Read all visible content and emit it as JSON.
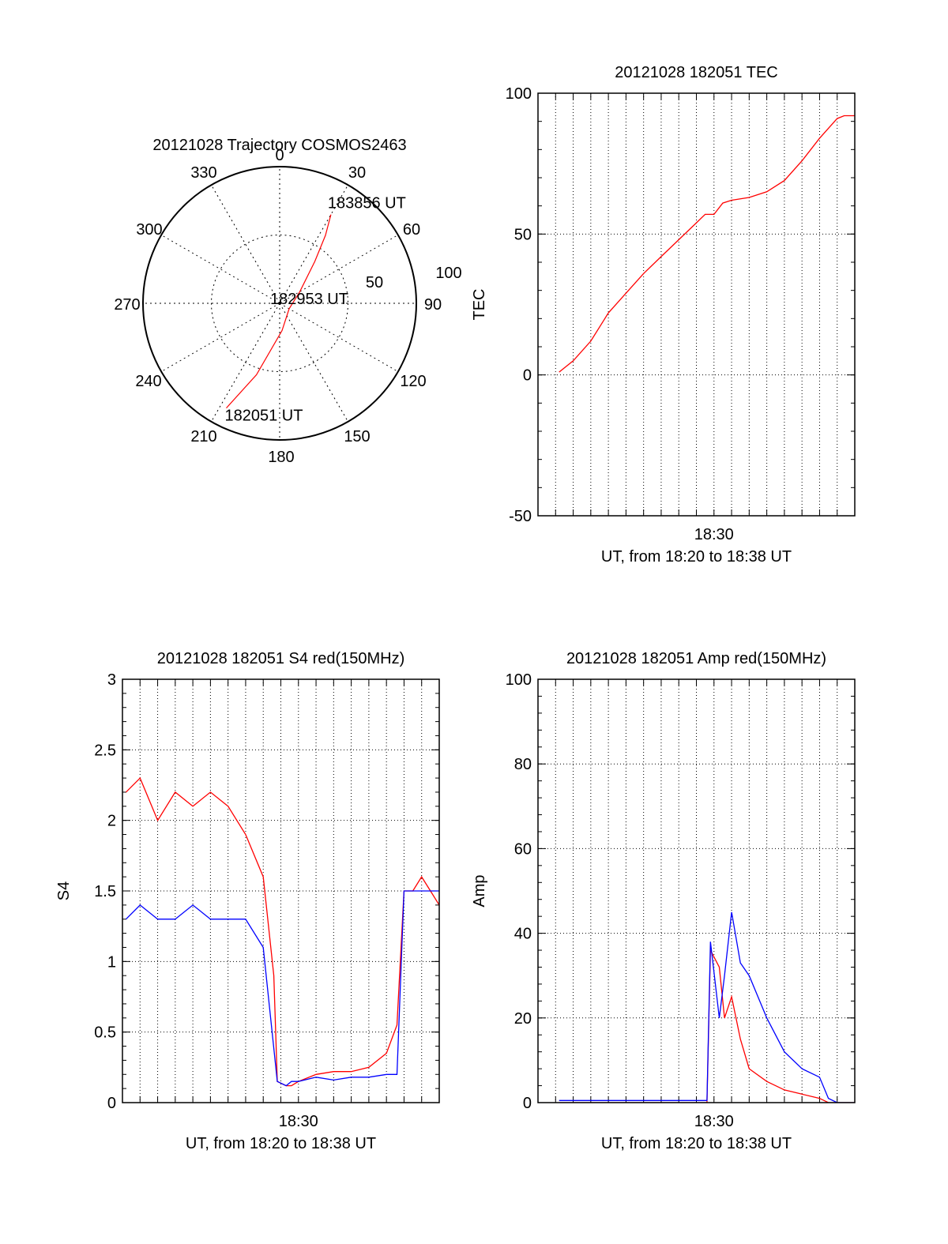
{
  "chart_data": [
    {
      "type": "polar",
      "title": "20121028 Trajectory COSMOS2463",
      "angle_labels": [
        "0",
        "30",
        "60",
        "90",
        "120",
        "150",
        "180",
        "210",
        "240",
        "270",
        "300",
        "330"
      ],
      "radial_labels": [
        "50",
        "100"
      ],
      "rlim": [
        0,
        100
      ],
      "grid": true,
      "series": [
        {
          "color": "#ff0000",
          "points": [
            {
              "az": 207,
              "r": 86
            },
            {
              "az": 198,
              "r": 55
            },
            {
              "az": 175,
              "r": 20
            },
            {
              "az": 120,
              "r": 8
            },
            {
              "az": 60,
              "r": 17
            },
            {
              "az": 40,
              "r": 40
            },
            {
              "az": 34,
              "r": 60
            },
            {
              "az": 30,
              "r": 75
            }
          ]
        }
      ],
      "annotations": [
        {
          "text": "183856 UT",
          "az": 30,
          "r": 75
        },
        {
          "text": "182953 UT",
          "az": 120,
          "r": 8
        },
        {
          "text": "182051 UT",
          "az": 207,
          "r": 86
        }
      ]
    },
    {
      "type": "line",
      "title": "20121028 182051 TEC",
      "xlabel": "UT, from 18:20 to 18:38 UT",
      "ylabel": "TEC",
      "xlim": [
        0,
        18
      ],
      "ylim": [
        -50,
        100
      ],
      "x_unit": "minutes after 18:20 UT",
      "x_tick_labels": [
        {
          "x": 10,
          "label": "18:30"
        }
      ],
      "y_ticks": [
        "100",
        "50",
        "0",
        "-50"
      ],
      "grid": true,
      "series": [
        {
          "color": "#ff0000",
          "x": [
            1.2,
            2,
            3,
            4,
            5,
            6,
            7,
            8,
            9,
            9.5,
            10,
            10.5,
            11,
            12,
            13,
            14,
            15,
            16,
            17,
            17.4,
            18
          ],
          "y": [
            1,
            5,
            12,
            22,
            29,
            36,
            42,
            48,
            54,
            57,
            57,
            61,
            62,
            63,
            65,
            69,
            76,
            84,
            91,
            92,
            92
          ]
        }
      ]
    },
    {
      "type": "line",
      "title": "20121028 182051 S4 red(150MHz)",
      "xlabel": "UT, from 18:20 to 18:38 UT",
      "ylabel": "S4",
      "xlim": [
        0,
        18
      ],
      "ylim": [
        0,
        3
      ],
      "x_unit": "minutes after 18:20 UT",
      "x_tick_labels": [
        {
          "x": 10,
          "label": "18:30"
        }
      ],
      "y_ticks": [
        "3",
        "2.5",
        "2",
        "1.5",
        "1",
        "0.5",
        "0"
      ],
      "grid": true,
      "series": [
        {
          "color": "#ff0000",
          "x": [
            0.2,
            1,
            2,
            3,
            4,
            5,
            6,
            7,
            8,
            8.6,
            8.8,
            9.3,
            9.6,
            10,
            11,
            12,
            13,
            14,
            15,
            15.6,
            16,
            16.5,
            17,
            17.5,
            18
          ],
          "y": [
            2.2,
            2.3,
            2.0,
            2.2,
            2.1,
            2.2,
            2.1,
            1.9,
            1.6,
            0.9,
            0.15,
            0.12,
            0.12,
            0.15,
            0.2,
            0.22,
            0.22,
            0.25,
            0.35,
            0.55,
            1.5,
            1.5,
            1.6,
            1.5,
            1.4
          ]
        },
        {
          "color": "#0000ff",
          "x": [
            0.2,
            1,
            2,
            3,
            4,
            5,
            6,
            7,
            8,
            8.8,
            9.3,
            9.6,
            10,
            11,
            12,
            13,
            14,
            15,
            15.6,
            16,
            16.5,
            17,
            17.5,
            18
          ],
          "y": [
            1.3,
            1.4,
            1.3,
            1.3,
            1.4,
            1.3,
            1.3,
            1.3,
            1.1,
            0.15,
            0.12,
            0.15,
            0.15,
            0.18,
            0.16,
            0.18,
            0.18,
            0.2,
            0.2,
            1.5,
            1.5,
            1.5,
            1.5,
            1.5
          ]
        }
      ]
    },
    {
      "type": "line",
      "title": "20121028 182051 Amp red(150MHz)",
      "xlabel": "UT, from 18:20 to 18:38 UT",
      "ylabel": "Amp",
      "xlim": [
        0,
        18
      ],
      "ylim": [
        0,
        100
      ],
      "x_unit": "minutes after 18:20 UT",
      "x_tick_labels": [
        {
          "x": 10,
          "label": "18:30"
        }
      ],
      "y_ticks": [
        "100",
        "80",
        "60",
        "40",
        "20",
        "0"
      ],
      "grid": true,
      "series": [
        {
          "color": "#ff0000",
          "x": [
            1.2,
            4,
            8,
            9.6,
            9.8,
            10.3,
            10.6,
            11,
            11.5,
            12,
            13,
            14,
            15,
            16,
            16.5,
            17,
            18
          ],
          "y": [
            0,
            0,
            0,
            0,
            36,
            32,
            20,
            25,
            15,
            8,
            5,
            3,
            2,
            1,
            0,
            0,
            0
          ]
        },
        {
          "color": "#0000ff",
          "x": [
            1.2,
            4,
            8,
            9.6,
            9.8,
            10.3,
            10.6,
            11,
            11.5,
            12,
            13,
            14,
            15,
            16,
            16.5,
            17,
            18
          ],
          "y": [
            0.5,
            0.5,
            0.5,
            0.5,
            38,
            20,
            30,
            45,
            33,
            30,
            20,
            12,
            8,
            6,
            1,
            0,
            0
          ]
        }
      ]
    }
  ]
}
